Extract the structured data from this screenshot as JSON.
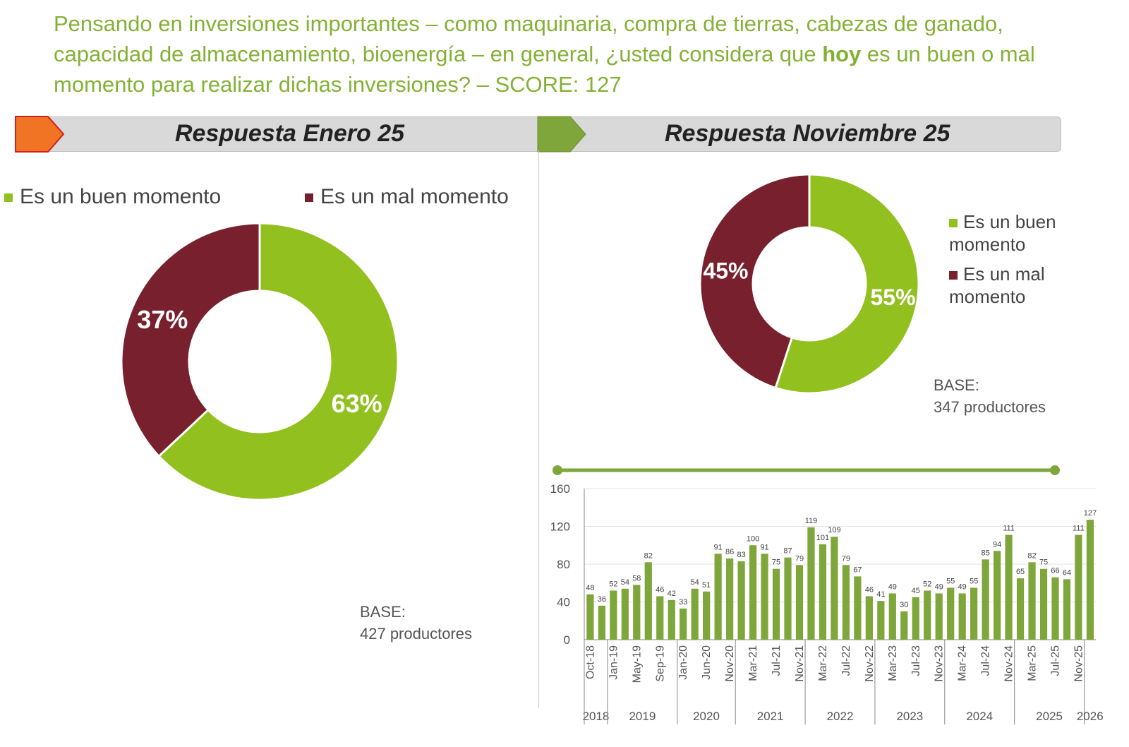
{
  "title": {
    "pre": "Pensando en inversiones importantes – como maquinaria, compra de tierras, cabezas de ganado, capacidad de almacenamiento, bioenergía – en general, ¿usted considera que ",
    "bold": "hoy",
    "post": " es un buen o mal momento para realizar dichas inversiones? – SCORE: 127"
  },
  "colors": {
    "good": "#92c01f",
    "bad": "#78202d",
    "bars": "#7ea63a",
    "title": "#84b135",
    "arrow_left": "#f07424",
    "arrow_right": "#7ea63a"
  },
  "left": {
    "header": "Respuesta Enero 25",
    "legend": [
      "Es un buen momento",
      "Es un mal momento"
    ],
    "base_label": "BASE:",
    "base_value": "427 productores"
  },
  "right": {
    "header": "Respuesta Noviembre 25",
    "legend": [
      "Es un buen momento",
      "Es un mal momento"
    ],
    "base_label": "BASE:",
    "base_value": "347 productores"
  },
  "chart_data": [
    {
      "type": "pie",
      "subtype": "donut",
      "title": "Respuesta Enero 25",
      "categories": [
        "Es un buen momento",
        "Es un mal momento"
      ],
      "values": [
        63,
        37
      ],
      "labels": [
        "63%",
        "37%"
      ]
    },
    {
      "type": "pie",
      "subtype": "donut",
      "title": "Respuesta Noviembre 25",
      "categories": [
        "Es un buen momento",
        "Es un mal momento"
      ],
      "values": [
        55,
        45
      ],
      "labels": [
        "55%",
        "45%"
      ]
    },
    {
      "type": "bar",
      "ylim": [
        0,
        160
      ],
      "yticks": [
        0,
        40,
        80,
        120,
        160
      ],
      "grid": true,
      "values": [
        48,
        36,
        52,
        54,
        58,
        82,
        46,
        42,
        33,
        54,
        51,
        91,
        86,
        83,
        100,
        91,
        75,
        87,
        79,
        119,
        101,
        109,
        79,
        67,
        46,
        41,
        49,
        30,
        45,
        52,
        49,
        55,
        49,
        55,
        85,
        94,
        111,
        65,
        82,
        75,
        66,
        64,
        111,
        127
      ],
      "tick_labels": [
        "Oct-18",
        "",
        "Jan-19",
        "",
        "May-19",
        "",
        "Sep-19",
        "",
        "Jan-20",
        "",
        "Jun-20",
        "",
        "Nov-20",
        "",
        "Mar-21",
        "",
        "Jul-21",
        "",
        "Nov-21",
        "",
        "Mar-22",
        "",
        "Jul-22",
        "",
        "Nov-22",
        "",
        "Mar-23",
        "",
        "Jul-23",
        "",
        "Nov-23",
        "",
        "Mar-24",
        "",
        "Jul-24",
        "",
        "Nov-24",
        "",
        "Mar-25",
        "",
        "Jul-25",
        "",
        "Nov-25",
        ""
      ],
      "year_groups": [
        {
          "year": "2018",
          "count": 2
        },
        {
          "year": "2019",
          "count": 6
        },
        {
          "year": "2020",
          "count": 5
        },
        {
          "year": "2021",
          "count": 6
        },
        {
          "year": "2022",
          "count": 6
        },
        {
          "year": "2023",
          "count": 6
        },
        {
          "year": "2024",
          "count": 6
        },
        {
          "year": "2025",
          "count": 6
        },
        {
          "year": "2026",
          "count": 1
        }
      ]
    }
  ]
}
